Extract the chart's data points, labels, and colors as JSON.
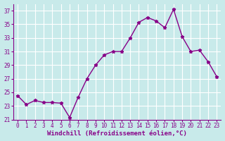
{
  "x": [
    0,
    1,
    2,
    3,
    4,
    5,
    6,
    7,
    8,
    9,
    10,
    11,
    12,
    13,
    14,
    15,
    16,
    17,
    18,
    19,
    20,
    21,
    22,
    23
  ],
  "y": [
    24.5,
    23.2,
    23.8,
    23.5,
    23.5,
    23.4,
    21.3,
    24.3,
    27.0,
    29.0,
    30.5,
    31.0,
    31.0,
    33.0,
    35.3,
    36.0,
    35.5,
    34.5,
    37.2,
    33.2,
    31.0,
    31.2,
    29.5,
    27.3
  ],
  "line_color": "#880088",
  "marker": "*",
  "marker_size": 3.5,
  "xlabel": "Windchill (Refroidissement éolien,°C)",
  "xlabel_fontsize": 6.5,
  "bg_color": "#c8eaea",
  "grid_color": "#ffffff",
  "ylim": [
    21,
    38
  ],
  "xlim": [
    -0.5,
    23.5
  ],
  "yticks": [
    21,
    23,
    25,
    27,
    29,
    31,
    33,
    35,
    37
  ],
  "xticks": [
    0,
    1,
    2,
    3,
    4,
    5,
    6,
    7,
    8,
    9,
    10,
    11,
    12,
    13,
    14,
    15,
    16,
    17,
    18,
    19,
    20,
    21,
    22,
    23
  ],
  "tick_fontsize": 5.5,
  "linewidth": 1.0
}
